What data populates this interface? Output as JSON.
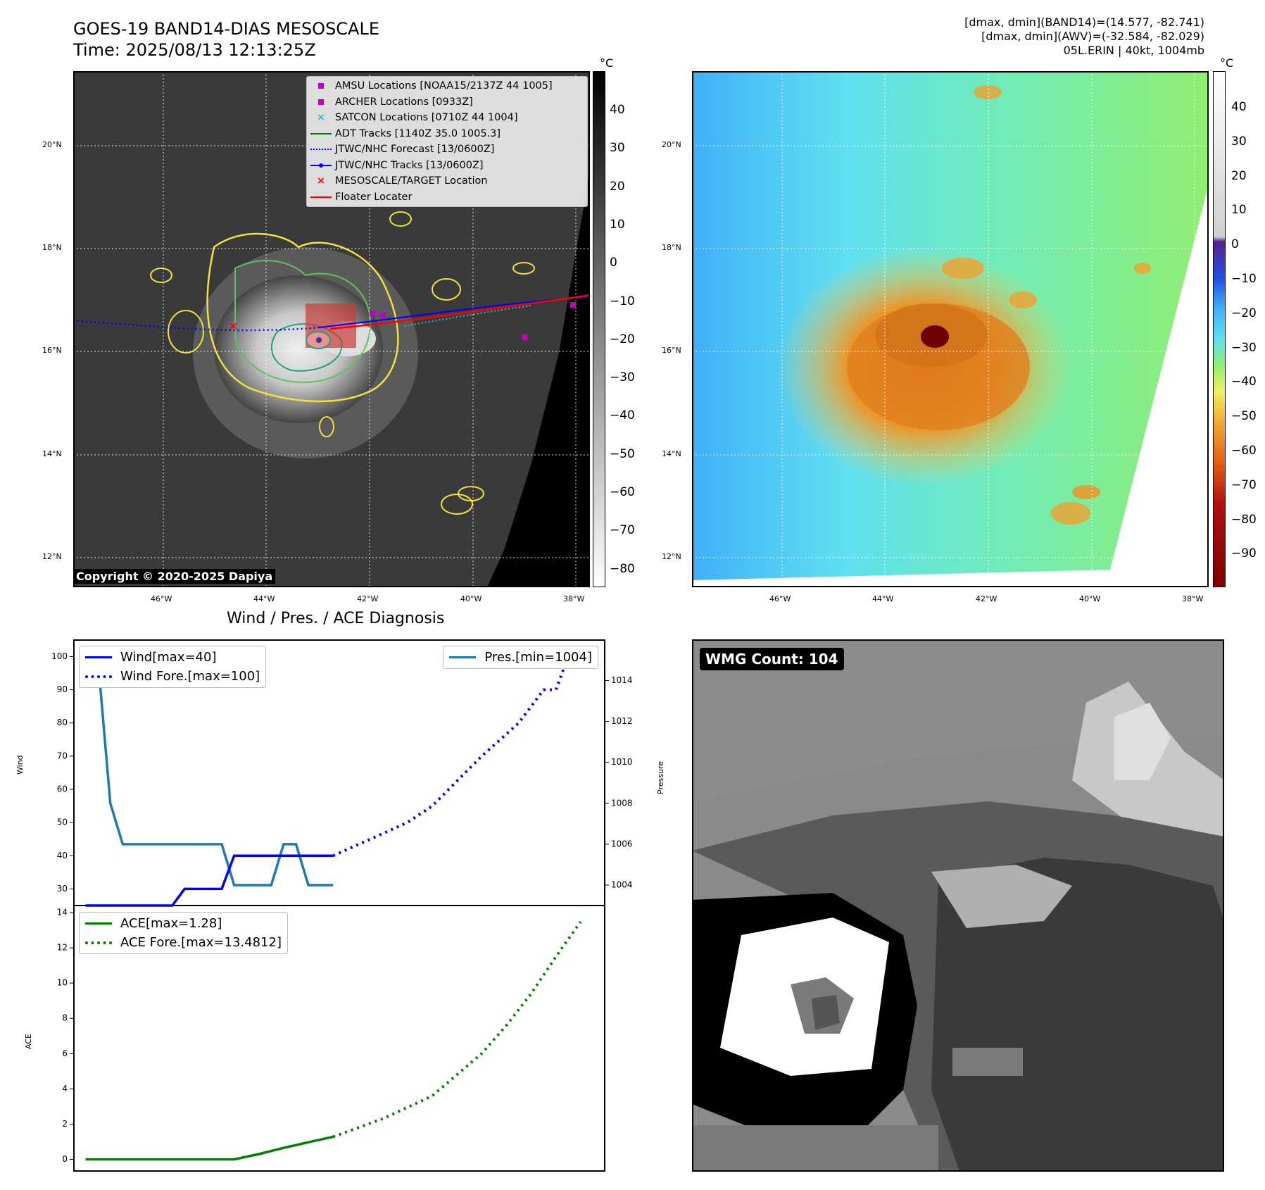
{
  "header": {
    "title_line1": "GOES-19 BAND14-DIAS MESOSCALE",
    "title_line2": "Time: 2025/08/13 12:13:25Z",
    "info_line1": "[dmax, dmin](BAND14)=(14.577, -82.741)",
    "info_line2": "[dmax, dmin](AWV)=(-32.584, -82.029)",
    "info_line3": "05L.ERIN | 40kt, 1004mb"
  },
  "map": {
    "lat_labels": [
      "20°N",
      "18°N",
      "16°N",
      "14°N",
      "12°N"
    ],
    "lon_labels": [
      "46°W",
      "44°W",
      "42°W",
      "40°W",
      "38°W"
    ],
    "legend": [
      {
        "label": "AMSU Locations [NOAA15/2137Z 44 1005]",
        "symbol": "square",
        "color": "#c000c0"
      },
      {
        "label": "ARCHER Locations [0933Z]",
        "symbol": "square",
        "color": "#c000c0"
      },
      {
        "label": "SATCON Locations [0710Z 44 1004]",
        "symbol": "x",
        "color": "#20c0c0"
      },
      {
        "label": "ADT Tracks [1140Z 35.0 1005.3]",
        "symbol": "line",
        "color": "#008000"
      },
      {
        "label": "JTWC/NHC Forecast [13/0600Z]",
        "symbol": "dotted",
        "color": "#0000ff"
      },
      {
        "label": "JTWC/NHC Tracks [13/0600Z]",
        "symbol": "line-dot",
        "color": "#0000ff"
      },
      {
        "label": "MESOSCALE/TARGET Location",
        "symbol": "x",
        "color": "#ff0000"
      },
      {
        "label": "Floater Locater",
        "symbol": "line",
        "color": "#ff0000"
      }
    ],
    "copyright": "Copyright © 2020-2025 Dapiya"
  },
  "colorbar_gray": {
    "unit": "°C",
    "ticks": [
      "40",
      "30",
      "20",
      "10",
      "0",
      "−10",
      "−20",
      "−30",
      "−40",
      "−50",
      "−60",
      "−70",
      "−80"
    ]
  },
  "colorbar_color": {
    "unit": "°C",
    "ticks": [
      "40",
      "30",
      "20",
      "10",
      "0",
      "−10",
      "−20",
      "−30",
      "−40",
      "−50",
      "−60",
      "−70",
      "−80",
      "−90"
    ]
  },
  "wmg": {
    "label": "WMG Count: 104"
  },
  "chart_data": [
    {
      "type": "line",
      "title": "Wind / Pres. / ACE Diagnosis",
      "ylabel": "Wind",
      "ylabel2": "Pressure",
      "ylim": [
        25,
        102
      ],
      "ylim2": [
        1003,
        1015.5
      ],
      "yticks": [
        "100",
        "90",
        "80",
        "70",
        "60",
        "50",
        "40",
        "30"
      ],
      "yticks2": [
        "1014",
        "1012",
        "1010",
        "1008",
        "1006",
        "1004"
      ],
      "x": [
        0,
        1,
        2,
        3,
        4,
        5,
        6,
        7,
        8,
        9,
        10,
        11,
        12,
        13,
        14,
        15,
        16,
        17,
        18,
        19,
        20
      ],
      "series": [
        {
          "name": "Wind[max=40]",
          "axis": "left",
          "style": "solid",
          "color": "#0000ff",
          "values": [
            25,
            25,
            25,
            25,
            25,
            25,
            25,
            25,
            30,
            30,
            30,
            30,
            40,
            40,
            40,
            40,
            40,
            40,
            40,
            40,
            40
          ]
        },
        {
          "name": "Wind Fore.[max=100]",
          "axis": "left",
          "style": "dotted",
          "color": "#0000ff",
          "x": [
            20,
            26,
            28,
            32,
            35,
            37,
            38,
            39,
            40
          ],
          "values": [
            40,
            50,
            55,
            70,
            80,
            90,
            90,
            100,
            100
          ]
        },
        {
          "name": "Pres.[min=1004]",
          "axis": "right",
          "style": "solid",
          "color": "#1f77b4",
          "values": [
            1015,
            1015,
            1008,
            1006,
            1006,
            1006,
            1006,
            1006,
            1006,
            1006,
            1006,
            1006,
            1004,
            1004,
            1004,
            1004,
            1006,
            1006,
            1004,
            1004,
            1004
          ]
        }
      ],
      "xlim": [
        -1,
        42
      ]
    },
    {
      "type": "line",
      "ylabel": "ACE",
      "ylim": [
        -0.3,
        14
      ],
      "yticks": [
        "14",
        "12",
        "10",
        "8",
        "6",
        "4",
        "2",
        "0"
      ],
      "series": [
        {
          "name": "ACE[max=1.28]",
          "style": "solid",
          "color": "#008000",
          "x": [
            0,
            2,
            4,
            6,
            8,
            10,
            12,
            14,
            16,
            18,
            20
          ],
          "values": [
            0,
            0,
            0,
            0,
            0,
            0,
            0,
            0.3,
            0.65,
            0.97,
            1.28
          ]
        },
        {
          "name": "ACE Fore.[max=13.4812]",
          "style": "dotted",
          "color": "#008000",
          "x": [
            20,
            24,
            28,
            30,
            32,
            34,
            36,
            38,
            40
          ],
          "values": [
            1.28,
            2.3,
            3.6,
            4.8,
            6.0,
            7.6,
            9.4,
            11.5,
            13.48
          ]
        }
      ],
      "xlim": [
        -1,
        42
      ]
    }
  ]
}
